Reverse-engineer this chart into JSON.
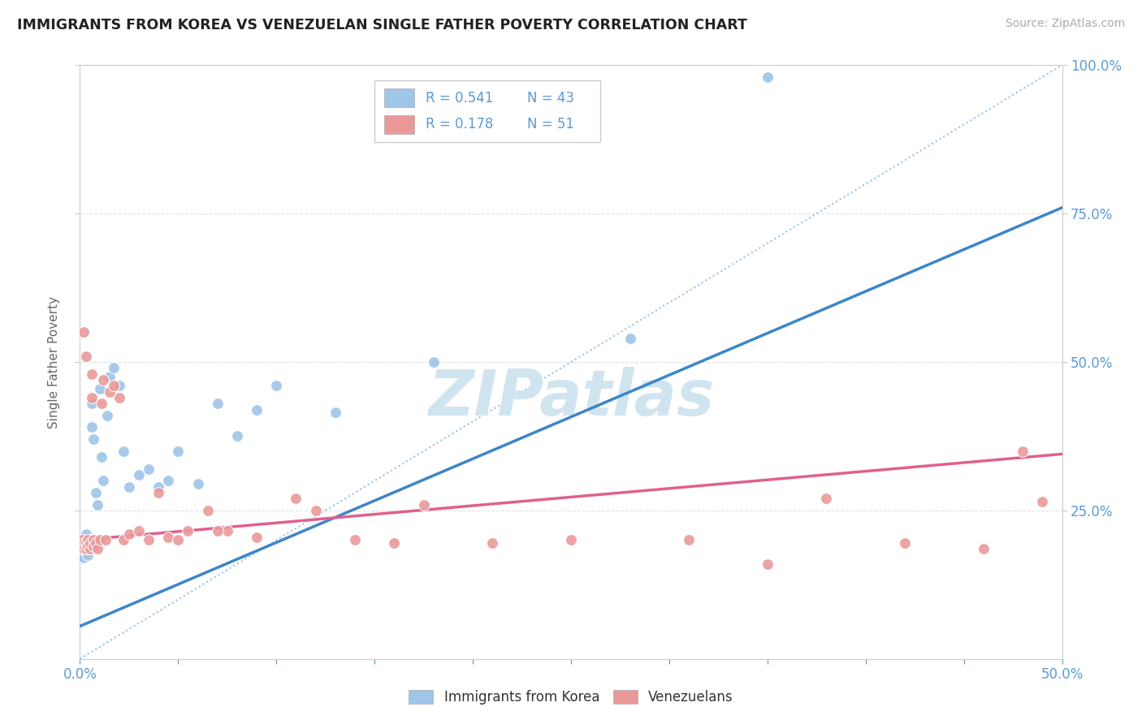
{
  "title": "IMMIGRANTS FROM KOREA VS VENEZUELAN SINGLE FATHER POVERTY CORRELATION CHART",
  "source_text": "Source: ZipAtlas.com",
  "ylabel": "Single Father Poverty",
  "xlim": [
    0.0,
    0.5
  ],
  "ylim": [
    0.0,
    1.0
  ],
  "xtick_vals": [
    0.0,
    0.05,
    0.1,
    0.15,
    0.2,
    0.25,
    0.3,
    0.35,
    0.4,
    0.45,
    0.5
  ],
  "xtick_labels_show": {
    "0.0": "0.0%",
    "0.5": "50.0%"
  },
  "ytick_vals": [
    0.25,
    0.5,
    0.75,
    1.0
  ],
  "ytick_labels": [
    "25.0%",
    "50.0%",
    "75.0%",
    "100.0%"
  ],
  "legend_r1": "0.541",
  "legend_n1": "43",
  "legend_r2": "0.178",
  "legend_n2": "51",
  "blue_color": "#9fc5e8",
  "pink_color": "#ea9999",
  "trend_blue": "#3d85c8",
  "trend_pink": "#e06090",
  "diag_color": "#6fa8dc",
  "watermark": "ZIPatlas",
  "watermark_color": "#d0e4f0",
  "blue_scatter_x": [
    0.001,
    0.001,
    0.001,
    0.002,
    0.002,
    0.002,
    0.002,
    0.003,
    0.003,
    0.003,
    0.004,
    0.004,
    0.005,
    0.005,
    0.006,
    0.006,
    0.007,
    0.007,
    0.008,
    0.009,
    0.01,
    0.011,
    0.012,
    0.014,
    0.015,
    0.017,
    0.02,
    0.022,
    0.025,
    0.03,
    0.035,
    0.04,
    0.045,
    0.05,
    0.06,
    0.07,
    0.08,
    0.09,
    0.1,
    0.13,
    0.18,
    0.28,
    0.35
  ],
  "blue_scatter_y": [
    0.195,
    0.185,
    0.175,
    0.2,
    0.19,
    0.185,
    0.17,
    0.195,
    0.18,
    0.21,
    0.175,
    0.195,
    0.185,
    0.2,
    0.43,
    0.39,
    0.37,
    0.19,
    0.28,
    0.26,
    0.455,
    0.34,
    0.3,
    0.41,
    0.475,
    0.49,
    0.46,
    0.35,
    0.29,
    0.31,
    0.32,
    0.29,
    0.3,
    0.35,
    0.295,
    0.43,
    0.375,
    0.42,
    0.46,
    0.415,
    0.5,
    0.54,
    0.98
  ],
  "pink_scatter_x": [
    0.001,
    0.001,
    0.002,
    0.002,
    0.002,
    0.003,
    0.003,
    0.003,
    0.004,
    0.004,
    0.005,
    0.005,
    0.006,
    0.006,
    0.007,
    0.007,
    0.008,
    0.009,
    0.01,
    0.011,
    0.012,
    0.013,
    0.015,
    0.017,
    0.02,
    0.022,
    0.025,
    0.03,
    0.035,
    0.04,
    0.045,
    0.055,
    0.065,
    0.075,
    0.09,
    0.11,
    0.14,
    0.175,
    0.21,
    0.25,
    0.31,
    0.35,
    0.38,
    0.42,
    0.46,
    0.48,
    0.49,
    0.12,
    0.16,
    0.07,
    0.05
  ],
  "pink_scatter_y": [
    0.195,
    0.2,
    0.55,
    0.195,
    0.185,
    0.51,
    0.195,
    0.185,
    0.2,
    0.19,
    0.185,
    0.195,
    0.48,
    0.44,
    0.2,
    0.19,
    0.195,
    0.185,
    0.2,
    0.43,
    0.47,
    0.2,
    0.45,
    0.46,
    0.44,
    0.2,
    0.21,
    0.215,
    0.2,
    0.28,
    0.205,
    0.215,
    0.25,
    0.215,
    0.205,
    0.27,
    0.2,
    0.26,
    0.195,
    0.2,
    0.2,
    0.16,
    0.27,
    0.195,
    0.185,
    0.35,
    0.265,
    0.25,
    0.195,
    0.215,
    0.2
  ],
  "blue_trend_x": [
    0.0,
    0.5
  ],
  "blue_trend_y": [
    0.055,
    0.76
  ],
  "pink_trend_x": [
    0.0,
    0.5
  ],
  "pink_trend_y": [
    0.2,
    0.345
  ],
  "bg_color": "#ffffff",
  "grid_color": "#e0e0e0",
  "axis_color": "#cccccc",
  "title_color": "#222222",
  "source_color": "#aaaaaa",
  "tick_color": "#5b9bd5",
  "right_ytick_color": "#5b9bd5"
}
